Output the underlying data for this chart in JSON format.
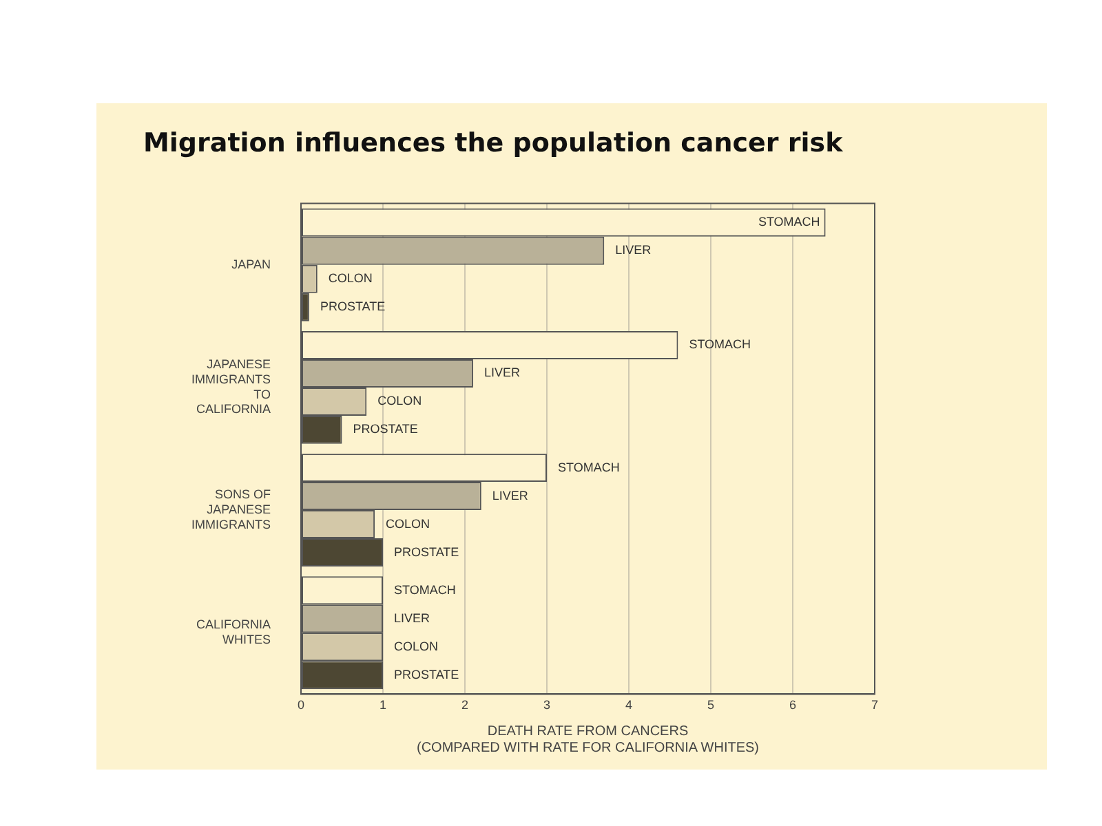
{
  "chart_data": {
    "type": "bar",
    "orientation": "horizontal",
    "title": "Migration influences the population cancer risk",
    "xlabel": "DEATH RATE FROM CANCERS\n(COMPARED WITH RATE FOR CALIFORNIA WHITES)",
    "categories": [
      "JAPAN",
      "JAPANESE IMMIGRANTS TO CALIFORNIA",
      "SONS OF JAPANESE IMMIGRANTS",
      "CALIFORNIA WHITES"
    ],
    "series": [
      {
        "name": "STOMACH",
        "color": "#fdf3d0",
        "values": [
          6.4,
          4.6,
          3.0,
          1.0
        ]
      },
      {
        "name": "LIVER",
        "color": "#b9b198",
        "values": [
          3.7,
          2.1,
          2.2,
          1.0
        ]
      },
      {
        "name": "COLON",
        "color": "#d3c8a8",
        "values": [
          0.2,
          0.8,
          0.9,
          1.0
        ]
      },
      {
        "name": "PROSTATE",
        "color": "#4d4733",
        "values": [
          0.1,
          0.5,
          1.0,
          1.0
        ]
      }
    ],
    "xlim": [
      0,
      7
    ],
    "xticks": [
      0,
      1,
      2,
      3,
      4,
      5,
      6,
      7
    ],
    "grid": "x",
    "legend": false
  }
}
